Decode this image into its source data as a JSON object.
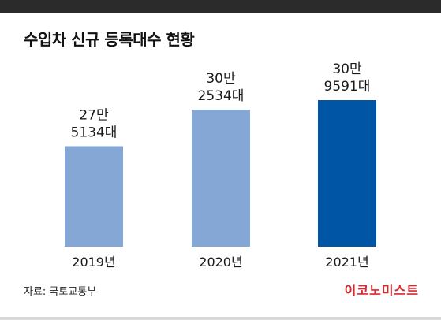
{
  "header": {
    "title": "수입차 신규 등록대수 현황"
  },
  "chart_data": {
    "type": "bar",
    "title": "수입차 신규 등록대수 현황",
    "categories": [
      "2019년",
      "2020년",
      "2021년"
    ],
    "values": [
      275134,
      302534,
      309591
    ],
    "value_labels": [
      [
        "27만",
        "5134대"
      ],
      [
        "30만",
        "2534대"
      ],
      [
        "30만",
        "9591대"
      ]
    ],
    "bar_colors": [
      "#85a7d6",
      "#85a7d6",
      "#0055a5"
    ],
    "xlabel": "",
    "ylabel": "",
    "grid": false,
    "legend": "none"
  },
  "footer": {
    "source": "자료: 국토교통부",
    "brand": "이코노미스트"
  }
}
